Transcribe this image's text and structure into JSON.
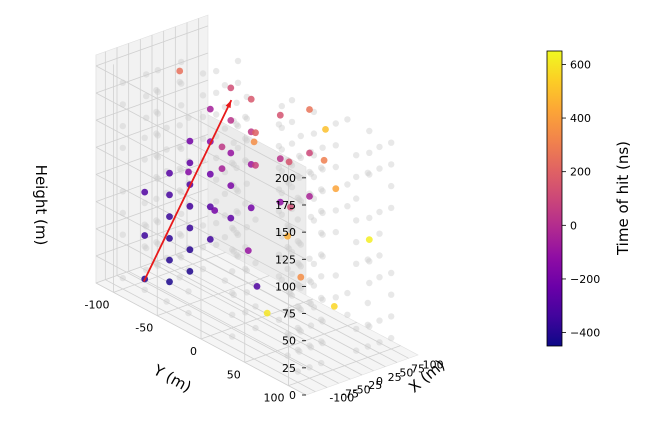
{
  "chart_data": {
    "type": "scatter3d",
    "xlabel": "X (m)",
    "ylabel": "Y (m)",
    "zlabel": "Height (m)",
    "xlim": [
      -120,
      120
    ],
    "ylim": [
      -120,
      120
    ],
    "zlim": [
      0,
      210
    ],
    "x_ticks": [
      -100,
      -75,
      -50,
      -25,
      0,
      25,
      50,
      75,
      100
    ],
    "y_ticks": [
      -100,
      -50,
      0,
      50,
      100
    ],
    "z_ticks": [
      0,
      25,
      50,
      75,
      100,
      125,
      150,
      175,
      200
    ],
    "colorbar": {
      "label": "Time of hit (ns)",
      "min": -450,
      "max": 650,
      "ticks": [
        600,
        400,
        200,
        0,
        -200,
        -400
      ],
      "colormap": "plasma"
    },
    "grid": true,
    "legend": "none",
    "track": {
      "color": "#e8191a",
      "start": [
        -55,
        -100,
        0
      ],
      "end": [
        -55,
        0,
        210
      ]
    },
    "unhit_dom_color": "#cccccc",
    "hits": [
      {
        "x": -75,
        "y": -60,
        "z": 20,
        "t": -420
      },
      {
        "x": -75,
        "y": -60,
        "z": 40,
        "t": -400
      },
      {
        "x": -75,
        "y": -60,
        "z": 60,
        "t": -380
      },
      {
        "x": -75,
        "y": -60,
        "z": 80,
        "t": -360
      },
      {
        "x": -75,
        "y": -60,
        "z": 100,
        "t": -320
      },
      {
        "x": -75,
        "y": -60,
        "z": 120,
        "t": -280
      },
      {
        "x": -50,
        "y": -50,
        "z": 30,
        "t": -410
      },
      {
        "x": -50,
        "y": -50,
        "z": 50,
        "t": -390
      },
      {
        "x": -50,
        "y": -50,
        "z": 70,
        "t": -360
      },
      {
        "x": -50,
        "y": -50,
        "z": 90,
        "t": -330
      },
      {
        "x": -50,
        "y": -50,
        "z": 110,
        "t": -300
      },
      {
        "x": -50,
        "y": -50,
        "z": 130,
        "t": -250
      },
      {
        "x": -50,
        "y": -50,
        "z": 150,
        "t": -200
      },
      {
        "x": -25,
        "y": -40,
        "z": 60,
        "t": -340
      },
      {
        "x": -25,
        "y": -40,
        "z": 90,
        "t": -280
      },
      {
        "x": -25,
        "y": -40,
        "z": 120,
        "t": -220
      },
      {
        "x": -25,
        "y": -40,
        "z": 150,
        "t": -140
      },
      {
        "x": -25,
        "y": -40,
        "z": 180,
        "t": -60
      },
      {
        "x": 0,
        "y": -30,
        "z": 80,
        "t": -260
      },
      {
        "x": 0,
        "y": -30,
        "z": 110,
        "t": -180
      },
      {
        "x": 0,
        "y": -30,
        "z": 140,
        "t": -100
      },
      {
        "x": 0,
        "y": -30,
        "z": 170,
        "t": 20
      },
      {
        "x": 0,
        "y": -30,
        "z": 200,
        "t": 120
      },
      {
        "x": 25,
        "y": -20,
        "z": 90,
        "t": -200
      },
      {
        "x": 25,
        "y": -20,
        "z": 130,
        "t": -80
      },
      {
        "x": 25,
        "y": -20,
        "z": 160,
        "t": 40
      },
      {
        "x": 25,
        "y": -20,
        "z": 190,
        "t": 160
      },
      {
        "x": 50,
        "y": 0,
        "z": 100,
        "t": -120
      },
      {
        "x": 50,
        "y": 0,
        "z": 140,
        "t": 20
      },
      {
        "x": 50,
        "y": 0,
        "z": 180,
        "t": 140
      },
      {
        "x": 75,
        "y": 20,
        "z": 110,
        "t": -40
      },
      {
        "x": 75,
        "y": 20,
        "z": 150,
        "t": 100
      },
      {
        "x": 75,
        "y": 20,
        "z": 190,
        "t": 260
      },
      {
        "x": -100,
        "y": -75,
        "z": 20,
        "t": -400
      },
      {
        "x": -100,
        "y": -75,
        "z": 60,
        "t": -350
      },
      {
        "x": -100,
        "y": -75,
        "z": 100,
        "t": -300
      },
      {
        "x": -100,
        "y": -25,
        "z": 140,
        "t": -150
      },
      {
        "x": -75,
        "y": 0,
        "z": 150,
        "t": -50
      },
      {
        "x": -75,
        "y": 0,
        "z": 170,
        "t": 40
      },
      {
        "x": -50,
        "y": 25,
        "z": 160,
        "t": 80
      },
      {
        "x": -50,
        "y": 25,
        "z": 190,
        "t": 200
      },
      {
        "x": -25,
        "y": 50,
        "z": 170,
        "t": 150
      },
      {
        "x": 0,
        "y": 50,
        "z": 60,
        "t": 350
      },
      {
        "x": 25,
        "y": 75,
        "z": 40,
        "t": 560
      },
      {
        "x": -25,
        "y": 25,
        "z": 20,
        "t": 600
      },
      {
        "x": 50,
        "y": 50,
        "z": 160,
        "t": 300
      },
      {
        "x": 75,
        "y": 50,
        "z": 130,
        "t": 420
      },
      {
        "x": 100,
        "y": 25,
        "z": 170,
        "t": 500
      },
      {
        "x": 100,
        "y": 75,
        "z": 90,
        "t": 620
      },
      {
        "x": -100,
        "y": 50,
        "z": 200,
        "t": 350
      },
      {
        "x": 50,
        "y": -75,
        "z": 60,
        "t": -200
      },
      {
        "x": 75,
        "y": -50,
        "z": 30,
        "t": -100
      },
      {
        "x": -75,
        "y": 75,
        "z": 120,
        "t": 450
      },
      {
        "x": 25,
        "y": 25,
        "z": 110,
        "t": 120
      },
      {
        "x": 0,
        "y": 0,
        "z": 30,
        "t": -300
      },
      {
        "x": -25,
        "y": -75,
        "z": 200,
        "t": 250
      }
    ]
  }
}
